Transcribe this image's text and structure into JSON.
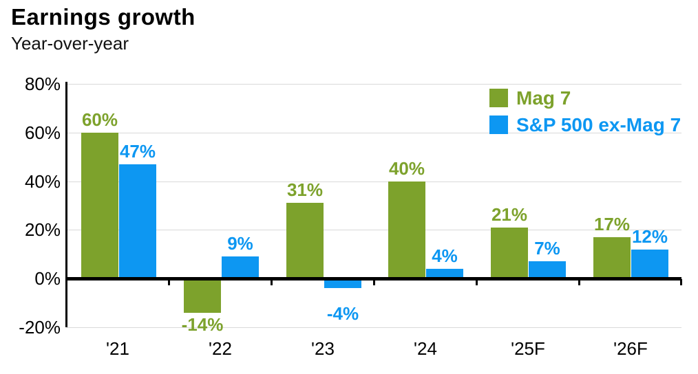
{
  "chart_data": {
    "type": "bar",
    "title": "Earnings growth",
    "subtitle": "Year-over-year",
    "categories": [
      "'21",
      "'22",
      "'23",
      "'24",
      "'25F",
      "'26F"
    ],
    "series": [
      {
        "name": "Mag 7",
        "color": "#7DA22C",
        "values": [
          60,
          -14,
          31,
          40,
          21,
          17
        ],
        "labels": [
          "60%",
          "-14%",
          "31%",
          "40%",
          "21%",
          "17%"
        ]
      },
      {
        "name": "S&P 500 ex-Mag 7",
        "color": "#0D97F2",
        "values": [
          47,
          9,
          -4,
          4,
          7,
          12
        ],
        "labels": [
          "47%",
          "9%",
          "-4%",
          "4%",
          "7%",
          "12%"
        ]
      }
    ],
    "y_axis": {
      "min": -20,
      "max": 80,
      "tick_interval": 20,
      "tick_values": [
        80,
        60,
        40,
        20,
        0,
        -20
      ],
      "tick_labels": [
        "80%",
        "60%",
        "40%",
        "20%",
        "0%",
        "-20%"
      ]
    },
    "legend": {
      "position": "top-right",
      "entries": [
        "Mag 7",
        "S&P 500 ex-Mag 7"
      ]
    },
    "grid": true,
    "axis_color": "#000000",
    "gridline_color": "#d9d9d9",
    "background_color": "#ffffff"
  }
}
